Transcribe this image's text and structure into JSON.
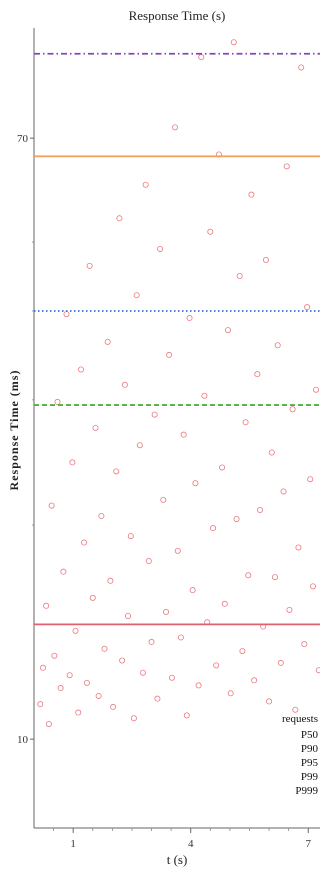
{
  "chart_data": {
    "type": "scatter",
    "title": "Response Time (s)",
    "xlabel": "t (s)",
    "ylabel": "Response Time (ms)",
    "xlim": [
      0,
      7.3
    ],
    "ylim": [
      7.5,
      100
    ],
    "y_scale": "log",
    "x_ticks": [
      1,
      4,
      7
    ],
    "x_minor_ticks": [
      0.5,
      1.5,
      2,
      2.5,
      3,
      3.5,
      4.5,
      5,
      5.5,
      6,
      6.5
    ],
    "y_ticks": [
      10,
      70
    ],
    "grid": false,
    "legend": {
      "title": "requests",
      "position": "bottom-right",
      "entries": [
        "P50",
        "P90",
        "P95",
        "P99",
        "P999"
      ]
    },
    "series": [
      {
        "name": "requests",
        "marker": "open-circle",
        "color": "#e8606a",
        "points": [
          [
            0.16,
            11.2
          ],
          [
            0.23,
            12.6
          ],
          [
            0.31,
            15.4
          ],
          [
            0.38,
            10.5
          ],
          [
            0.45,
            21.3
          ],
          [
            0.52,
            13.1
          ],
          [
            0.6,
            29.8
          ],
          [
            0.68,
            11.8
          ],
          [
            0.75,
            17.2
          ],
          [
            0.83,
            39.6
          ],
          [
            0.91,
            12.3
          ],
          [
            0.98,
            24.5
          ],
          [
            1.06,
            14.2
          ],
          [
            1.13,
            10.9
          ],
          [
            1.2,
            33.1
          ],
          [
            1.28,
            18.9
          ],
          [
            1.35,
            12.0
          ],
          [
            1.42,
            46.3
          ],
          [
            1.5,
            15.8
          ],
          [
            1.57,
            27.4
          ],
          [
            1.65,
            11.5
          ],
          [
            1.72,
            20.6
          ],
          [
            1.8,
            13.4
          ],
          [
            1.88,
            36.2
          ],
          [
            1.95,
            16.7
          ],
          [
            2.02,
            11.1
          ],
          [
            2.1,
            23.8
          ],
          [
            2.18,
            54.0
          ],
          [
            2.25,
            12.9
          ],
          [
            2.32,
            31.5
          ],
          [
            2.4,
            14.9
          ],
          [
            2.47,
            19.3
          ],
          [
            2.55,
            10.7
          ],
          [
            2.62,
            42.1
          ],
          [
            2.7,
            25.9
          ],
          [
            2.78,
            12.4
          ],
          [
            2.85,
            60.2
          ],
          [
            2.93,
            17.8
          ],
          [
            3.0,
            13.7
          ],
          [
            3.08,
            28.6
          ],
          [
            3.15,
            11.4
          ],
          [
            3.22,
            48.9
          ],
          [
            3.3,
            21.7
          ],
          [
            3.37,
            15.1
          ],
          [
            3.45,
            34.7
          ],
          [
            3.52,
            12.2
          ],
          [
            3.6,
            72.5
          ],
          [
            3.67,
            18.4
          ],
          [
            3.75,
            13.9
          ],
          [
            3.82,
            26.8
          ],
          [
            3.9,
            10.8
          ],
          [
            3.97,
            39.1
          ],
          [
            4.05,
            16.2
          ],
          [
            4.12,
            22.9
          ],
          [
            4.2,
            11.9
          ],
          [
            4.27,
            91.0
          ],
          [
            4.35,
            30.4
          ],
          [
            4.42,
            14.6
          ],
          [
            4.5,
            51.7
          ],
          [
            4.57,
            19.8
          ],
          [
            4.65,
            12.7
          ],
          [
            4.72,
            66.4
          ],
          [
            4.8,
            24.1
          ],
          [
            4.87,
            15.5
          ],
          [
            4.95,
            37.6
          ],
          [
            5.02,
            11.6
          ],
          [
            5.1,
            95.5
          ],
          [
            5.17,
            20.4
          ],
          [
            5.25,
            44.8
          ],
          [
            5.32,
            13.3
          ],
          [
            5.4,
            27.9
          ],
          [
            5.47,
            17.0
          ],
          [
            5.55,
            58.3
          ],
          [
            5.62,
            12.1
          ],
          [
            5.7,
            32.6
          ],
          [
            5.77,
            21.0
          ],
          [
            5.85,
            14.4
          ],
          [
            5.92,
            47.2
          ],
          [
            6.0,
            11.3
          ],
          [
            6.07,
            25.3
          ],
          [
            6.15,
            16.9
          ],
          [
            6.22,
            35.8
          ],
          [
            6.3,
            12.8
          ],
          [
            6.37,
            22.3
          ],
          [
            6.45,
            63.9
          ],
          [
            6.52,
            15.2
          ],
          [
            6.6,
            29.1
          ],
          [
            6.67,
            11.0
          ],
          [
            6.75,
            18.6
          ],
          [
            6.82,
            88.0
          ],
          [
            6.9,
            13.6
          ],
          [
            6.97,
            40.5
          ],
          [
            7.05,
            23.2
          ],
          [
            7.12,
            16.4
          ],
          [
            7.2,
            31.0
          ],
          [
            7.27,
            12.5
          ]
        ]
      }
    ],
    "reference_lines": [
      {
        "name": "P50",
        "y": 14.5,
        "color": "#e06070",
        "style": "solid"
      },
      {
        "name": "P90",
        "y": 29.5,
        "color": "#4fae3f",
        "style": "dashed"
      },
      {
        "name": "P95",
        "y": 40.0,
        "color": "#3b6fc7",
        "style": "dotted"
      },
      {
        "name": "P99",
        "y": 66.0,
        "color": "#f5a15a",
        "style": "solid"
      },
      {
        "name": "P999",
        "y": 92.0,
        "color": "#8a44b8",
        "style": "dashdot"
      }
    ]
  }
}
